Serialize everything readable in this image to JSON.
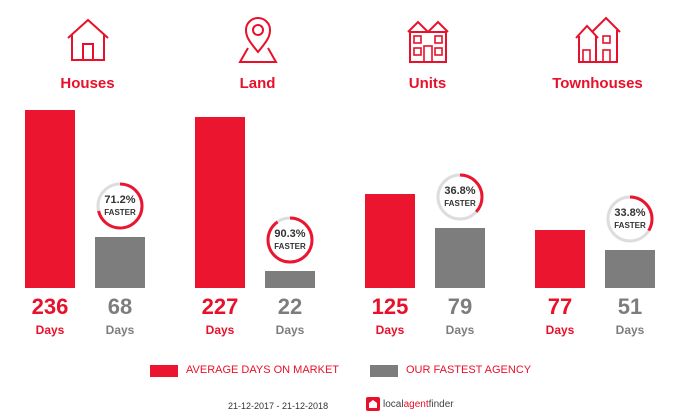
{
  "chart_data": {
    "type": "bar",
    "categories": [
      "Houses",
      "Land",
      "Units",
      "Townhouses"
    ],
    "series": [
      {
        "name": "AVERAGE DAYS ON MARKET",
        "values": [
          236,
          227,
          125,
          77
        ]
      },
      {
        "name": "OUR FASTEST AGENCY",
        "values": [
          68,
          22,
          79,
          51
        ]
      }
    ],
    "faster_percent": [
      71.2,
      90.3,
      36.8,
      33.8
    ],
    "faster_labels": [
      "71.2%",
      "90.3%",
      "36.8%",
      "33.8%"
    ],
    "faster_text": "FASTER",
    "unit_label": "Days",
    "ylim": [
      0,
      236
    ]
  },
  "categories": [
    "Houses",
    "Land",
    "Units",
    "Townhouses"
  ],
  "icons": [
    "house-icon",
    "map-pin-icon",
    "apartment-icon",
    "townhouse-icon"
  ],
  "legend": {
    "average_label": "AVERAGE DAYS ON MARKET",
    "fastest_label": "OUR FASTEST AGENCY"
  },
  "footer": {
    "date_range": "21-12-2017 - 21-12-2018",
    "brand_prefix": "local",
    "brand_highlight": "agent",
    "brand_suffix": "finder"
  },
  "colors": {
    "accent": "#ec1530",
    "grey": "#7d7d7d",
    "ring_track": "#dddddd"
  }
}
